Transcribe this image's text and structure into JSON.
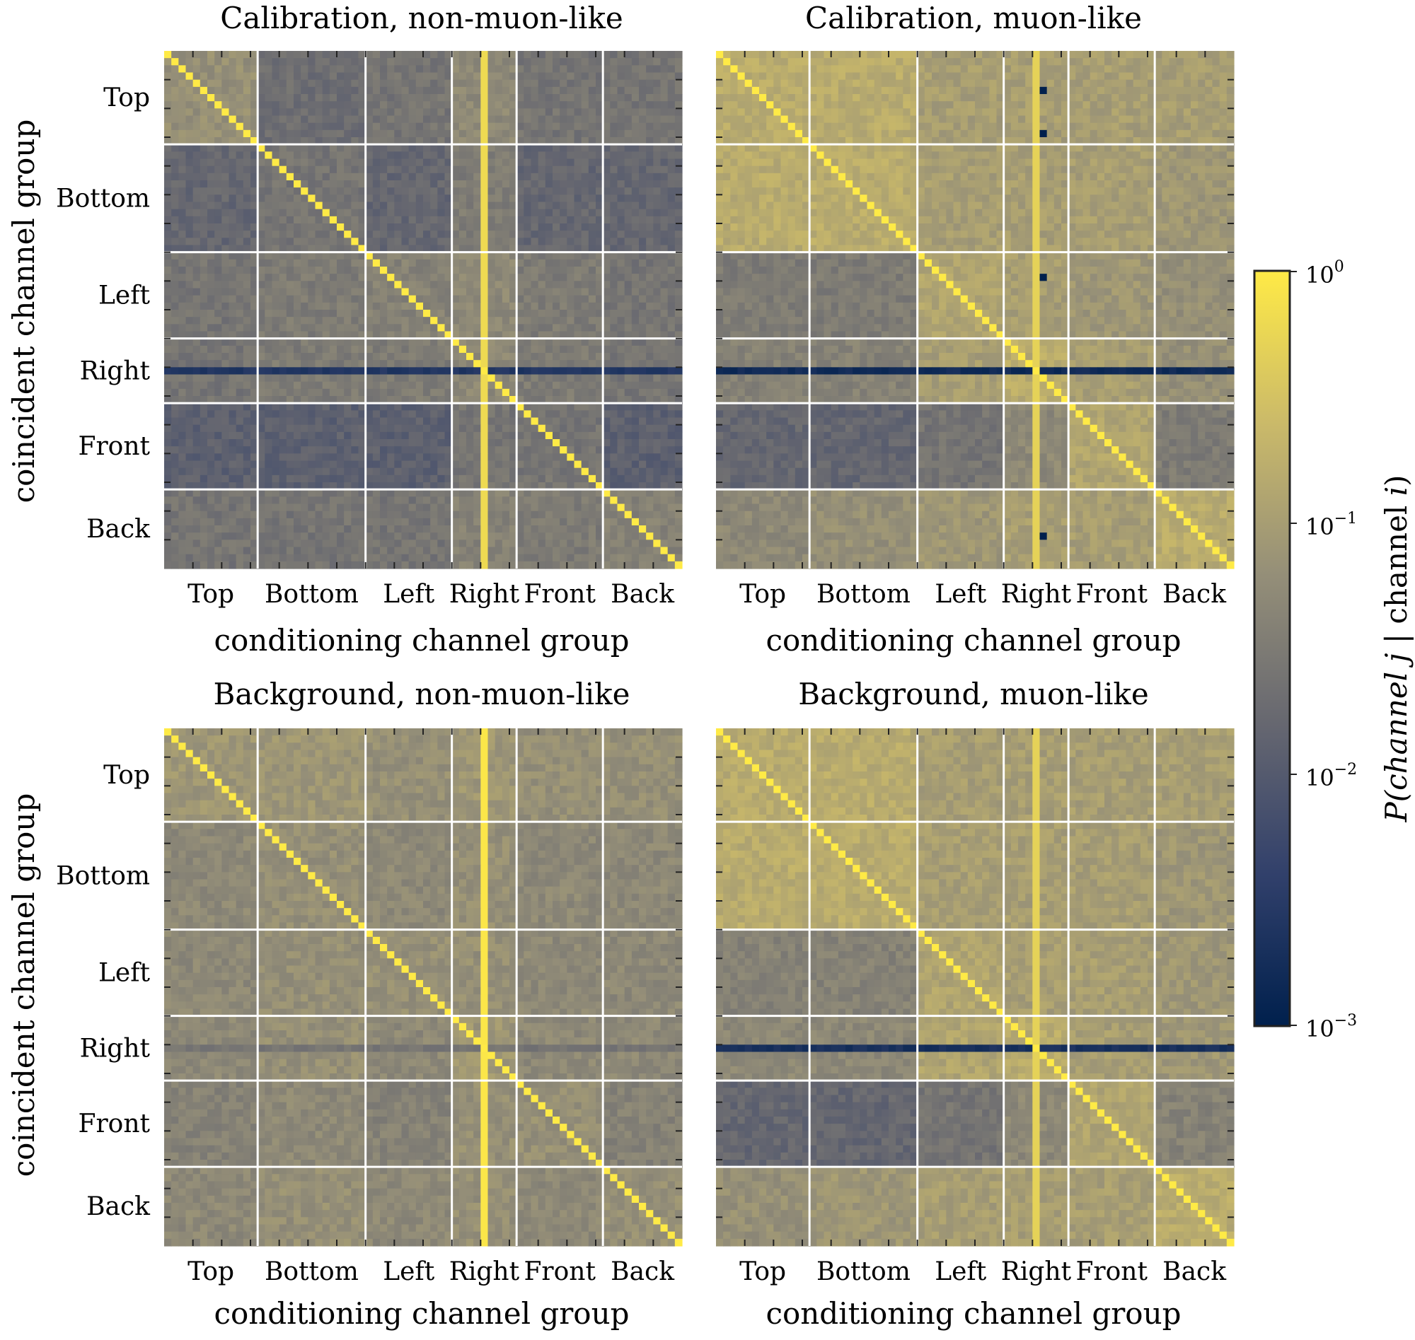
{
  "figure": {
    "colorbar": {
      "label": "P(channel j | channel i)",
      "label_parts": [
        "P(channel ",
        "j",
        " | channel ",
        "i",
        ")"
      ],
      "scale": "log",
      "range": [
        0.001,
        1
      ],
      "ticks": [
        {
          "base": "10",
          "exp": "0"
        },
        {
          "base": "10",
          "exp": "−1"
        },
        {
          "base": "10",
          "exp": "−2"
        },
        {
          "base": "10",
          "exp": "−3"
        }
      ],
      "colormap": "cividis"
    }
  },
  "chart_data": [
    {
      "type": "heatmap",
      "title": "Calibration, non-muon-like",
      "xlabel": "conditioning channel group",
      "ylabel": "coincident channel group",
      "groups": [
        "Top",
        "Bottom",
        "Left",
        "Right",
        "Front",
        "Back"
      ],
      "group_sizes": [
        13,
        15,
        12,
        9,
        12,
        11
      ],
      "channels_total": 72,
      "value_scale": "log10",
      "diagonal_value": 1.0,
      "block_log10_values": [
        [
          -1.2,
          -1.7,
          -1.6,
          -1.3,
          -1.6,
          -1.6
        ],
        [
          -1.8,
          -1.6,
          -1.8,
          -1.5,
          -1.8,
          -1.8
        ],
        [
          -1.6,
          -1.5,
          -1.4,
          -1.3,
          -1.5,
          -1.6
        ],
        [
          -1.6,
          -1.5,
          -1.5,
          -1.3,
          -1.5,
          -1.6
        ],
        [
          -1.9,
          -1.9,
          -1.9,
          -1.6,
          -1.6,
          -1.9
        ],
        [
          -1.6,
          -1.6,
          -1.6,
          -1.4,
          -1.5,
          -1.4
        ]
      ],
      "bright_columns": [
        {
          "group": "Right",
          "index": 4,
          "log10": -0.2
        }
      ],
      "dark_rows": [
        {
          "group": "Right",
          "index": 4,
          "log10": -2.6
        }
      ],
      "dark_cells": []
    },
    {
      "type": "heatmap",
      "title": "Calibration, muon-like",
      "xlabel": "conditioning channel group",
      "ylabel": "",
      "groups": [
        "Top",
        "Bottom",
        "Left",
        "Right",
        "Front",
        "Back"
      ],
      "group_sizes": [
        13,
        15,
        12,
        9,
        12,
        11
      ],
      "channels_total": 72,
      "value_scale": "log10",
      "diagonal_value": 1.0,
      "block_log10_values": [
        [
          -0.8,
          -0.8,
          -1.0,
          -1.0,
          -1.0,
          -1.0
        ],
        [
          -0.8,
          -0.8,
          -1.0,
          -1.0,
          -1.0,
          -1.1
        ],
        [
          -1.5,
          -1.5,
          -0.9,
          -1.0,
          -1.1,
          -1.2
        ],
        [
          -1.4,
          -1.4,
          -1.0,
          -0.8,
          -1.0,
          -1.2
        ],
        [
          -1.8,
          -1.8,
          -1.6,
          -1.3,
          -0.9,
          -1.5
        ],
        [
          -1.3,
          -1.2,
          -1.1,
          -1.0,
          -1.0,
          -0.8
        ]
      ],
      "bright_columns": [
        {
          "group": "Right",
          "index": 4,
          "log10": -0.3
        }
      ],
      "dark_rows": [
        {
          "group": "Right",
          "index": 4,
          "log10": -2.8
        }
      ],
      "dark_cells": [
        [
          5,
          45
        ],
        [
          11,
          45
        ],
        [
          31,
          45
        ],
        [
          67,
          45
        ]
      ]
    },
    {
      "type": "heatmap",
      "title": "Background, non-muon-like",
      "xlabel": "conditioning channel group",
      "ylabel": "coincident channel group",
      "groups": [
        "Top",
        "Bottom",
        "Left",
        "Right",
        "Front",
        "Back"
      ],
      "group_sizes": [
        13,
        15,
        12,
        9,
        12,
        11
      ],
      "channels_total": 72,
      "value_scale": "log10",
      "diagonal_value": 1.0,
      "block_log10_values": [
        [
          -1.1,
          -1.1,
          -1.2,
          -1.1,
          -1.2,
          -1.2
        ],
        [
          -1.3,
          -1.2,
          -1.3,
          -1.2,
          -1.3,
          -1.3
        ],
        [
          -1.3,
          -1.2,
          -1.2,
          -1.2,
          -1.3,
          -1.3
        ],
        [
          -1.3,
          -1.2,
          -1.3,
          -1.1,
          -1.3,
          -1.3
        ],
        [
          -1.4,
          -1.3,
          -1.4,
          -1.2,
          -1.2,
          -1.4
        ],
        [
          -1.3,
          -1.2,
          -1.3,
          -1.2,
          -1.3,
          -1.2
        ]
      ],
      "bright_columns": [
        {
          "group": "Right",
          "index": 4,
          "log10": -0.05
        }
      ],
      "dark_rows": [
        {
          "group": "Right",
          "index": 4,
          "log10": -1.6
        }
      ],
      "dark_cells": []
    },
    {
      "type": "heatmap",
      "title": "Background, muon-like",
      "xlabel": "conditioning channel group",
      "ylabel": "",
      "groups": [
        "Top",
        "Bottom",
        "Left",
        "Right",
        "Front",
        "Back"
      ],
      "group_sizes": [
        13,
        15,
        12,
        9,
        12,
        11
      ],
      "channels_total": 72,
      "value_scale": "log10",
      "diagonal_value": 1.0,
      "block_log10_values": [
        [
          -0.8,
          -0.8,
          -1.0,
          -1.0,
          -1.0,
          -1.0
        ],
        [
          -0.8,
          -0.8,
          -1.0,
          -1.0,
          -1.0,
          -1.1
        ],
        [
          -1.4,
          -1.4,
          -0.9,
          -1.0,
          -1.0,
          -1.1
        ],
        [
          -1.3,
          -1.3,
          -0.9,
          -0.8,
          -1.0,
          -1.1
        ],
        [
          -1.8,
          -1.8,
          -1.6,
          -1.3,
          -0.9,
          -1.4
        ],
        [
          -1.2,
          -1.1,
          -1.0,
          -1.0,
          -1.0,
          -0.8
        ]
      ],
      "bright_columns": [
        {
          "group": "Right",
          "index": 4,
          "log10": -0.3
        }
      ],
      "dark_rows": [
        {
          "group": "Right",
          "index": 4,
          "log10": -2.7
        }
      ],
      "dark_cells": []
    }
  ]
}
